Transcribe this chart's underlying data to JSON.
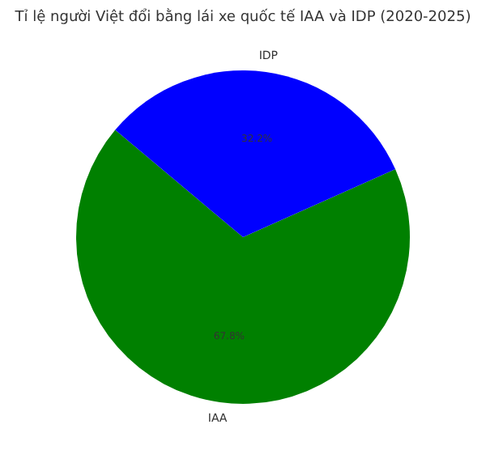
{
  "chart_data": {
    "type": "pie",
    "title": "Tỉ lệ người Việt đổi bằng lái xe quốc tế IAA và IDP (2020-2025)",
    "categories": [
      "IAA",
      "IDP"
    ],
    "values": [
      67.8,
      32.2
    ],
    "colors": [
      "#008000",
      "#0000ff"
    ],
    "value_labels": [
      "67.8%",
      "32.2%"
    ]
  }
}
